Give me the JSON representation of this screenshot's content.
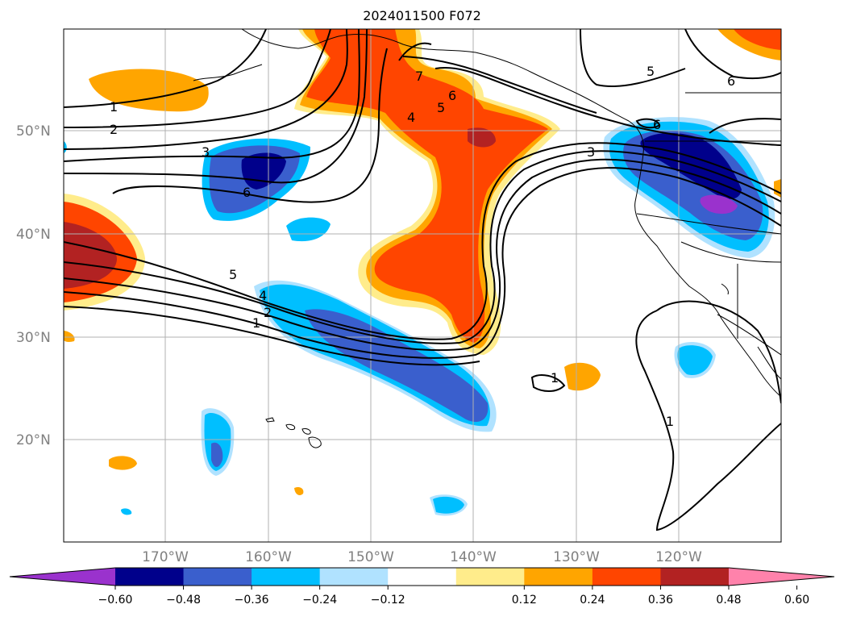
{
  "title": "2024011500 F072",
  "lat_labels": [
    "50°N",
    "40°N",
    "30°N",
    "20°N"
  ],
  "lon_labels": [
    "170°W",
    "160°W",
    "150°W",
    "140°W",
    "130°W",
    "120°W"
  ],
  "colorbar": {
    "ticks": [
      "−0.60",
      "−0.48",
      "−0.36",
      "−0.24",
      "−0.12",
      "0.12",
      "0.24",
      "0.36",
      "0.48",
      "0.60"
    ],
    "colors": [
      "#9a32cd",
      "#00008b",
      "#3a5fcd",
      "#00bfff",
      "#b0e2ff",
      "#ffffff",
      "#ffec8b",
      "#ffa500",
      "#ff4500",
      "#b22222",
      "#ff82ab"
    ]
  },
  "contour_labels": [
    "1",
    "2",
    "3",
    "6",
    "5",
    "4",
    "2",
    "1",
    "7",
    "6",
    "5",
    "4",
    "3",
    "6",
    "5",
    "6",
    "1",
    "1"
  ],
  "coastline_color": "#000000",
  "gridline_color": "#b0b0b0"
}
